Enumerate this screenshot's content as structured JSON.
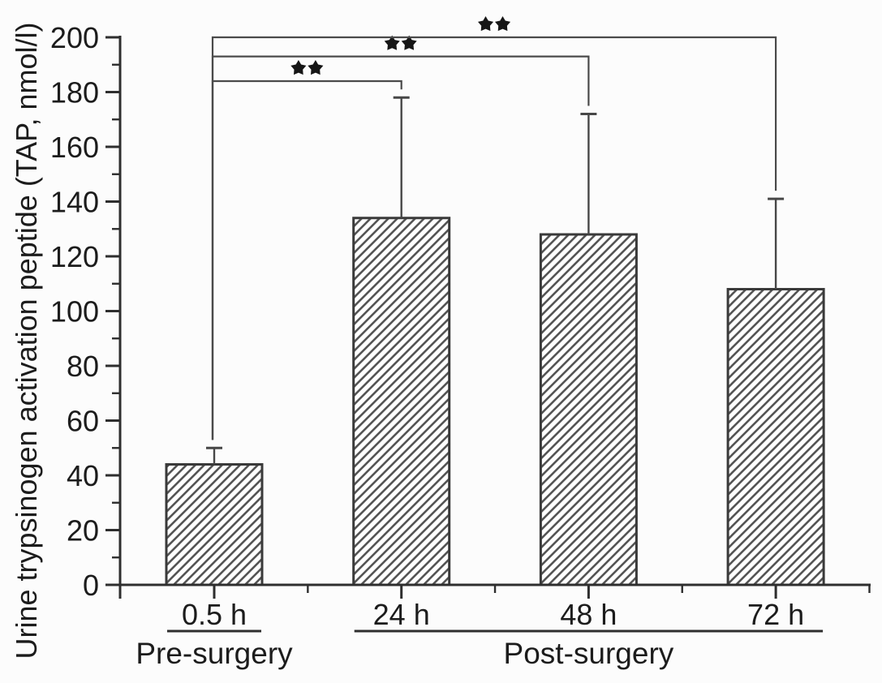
{
  "figure": {
    "background": "#fcfcfc",
    "title": ""
  },
  "chart_data": {
    "type": "bar",
    "title": "",
    "xlabel": "",
    "ylabel": "Urine trypsinogen activation peptide (TAP, nmol/l)",
    "ylim": [
      0,
      200
    ],
    "ytick_step_major": 20,
    "ytick_step_minor": 10,
    "ytick_labels": [
      "0",
      "20",
      "40",
      "60",
      "80",
      "100",
      "120",
      "140",
      "160",
      "180",
      "200"
    ],
    "categories": [
      "0.5 h",
      "24 h",
      "48 h",
      "72 h"
    ],
    "values": [
      44,
      134,
      128,
      108
    ],
    "errors_plus": [
      6,
      44,
      44,
      33
    ],
    "bar_hatch": "diagonal-forward",
    "grid": false,
    "legend": null,
    "groups": [
      {
        "label": "Pre-surgery",
        "from": 0,
        "to": 0
      },
      {
        "label": "Post-surgery",
        "from": 1,
        "to": 3
      }
    ],
    "significance": [
      {
        "from": 0,
        "to": 1,
        "level": 184,
        "label": "**"
      },
      {
        "from": 0,
        "to": 2,
        "level": 193,
        "label": "**"
      },
      {
        "from": 0,
        "to": 3,
        "level": 200,
        "label": "**"
      }
    ]
  },
  "colors": {
    "axis": "#2e2e2e",
    "text": "#1c1c1c",
    "bar_stroke": "#3a3a3a",
    "bar_fill": "#ffffff",
    "hatch": "#555555",
    "error_bar": "#474747",
    "bracket": "#4a4a4a",
    "star": "#161616",
    "background": "#fcfcfc"
  }
}
